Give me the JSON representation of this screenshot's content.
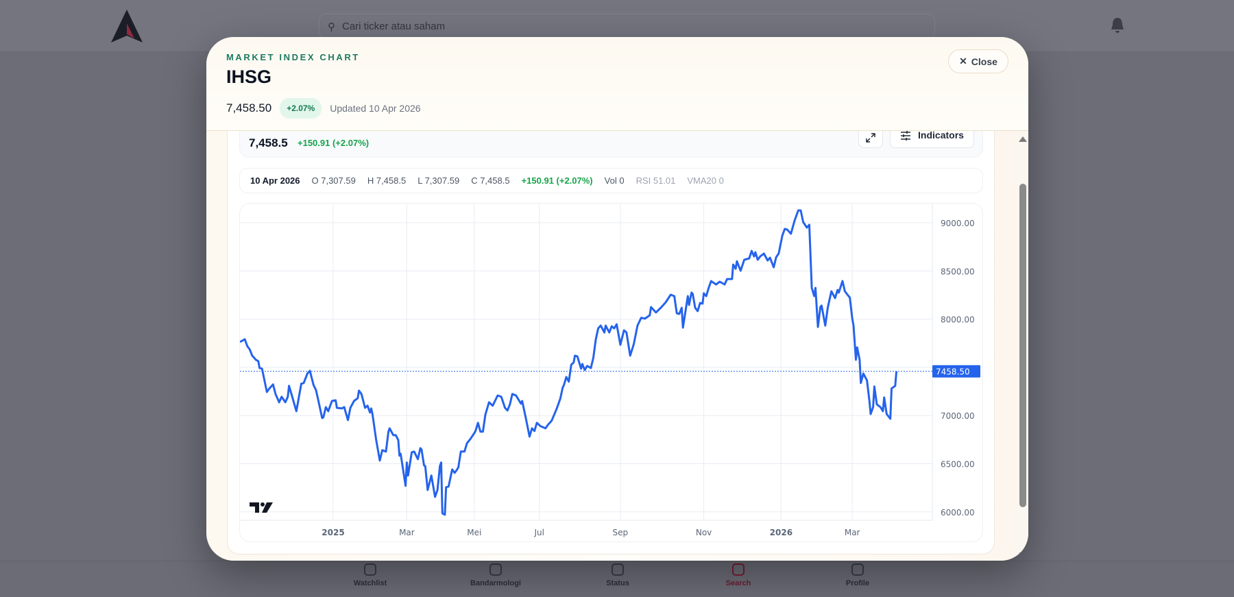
{
  "app": {
    "search_placeholder": "Cari ticker atau saham",
    "bottom_nav": [
      "Watchlist",
      "Bandarmologi",
      "Status",
      "Search",
      "Profile"
    ]
  },
  "modal": {
    "eyebrow": "MARKET INDEX CHART",
    "title": "IHSG",
    "price": "7,458.50",
    "change_pct": "+2.07%",
    "updated": "Updated 10 Apr 2026",
    "close_label": "Close"
  },
  "chart_header": {
    "last": "7,458.5",
    "change": "+150.91 (+2.07%)",
    "indicators_label": "Indicators"
  },
  "ohlc": {
    "date": "10 Apr 2026",
    "open": "O 7,307.59",
    "high": "H 7,458.5",
    "low": "L 7,307.59",
    "close": "C 7,458.5",
    "change": "+150.91 (+2.07%)",
    "vol": "Vol 0",
    "rsi": "RSI 51.01",
    "vma": "VMA20 0"
  },
  "colors": {
    "line": "#2563eb",
    "up": "#16a34a",
    "accent": "#1c7a62"
  },
  "chart_data": {
    "type": "line",
    "title": "IHSG",
    "x_unit": "days since 2025-01-01 (trading-bar axis)",
    "ylim": [
      5950,
      9250
    ],
    "yticks": [
      {
        "v": 9000,
        "label": "9000.00"
      },
      {
        "v": 8500,
        "label": "8500.00"
      },
      {
        "v": 8000,
        "label": "8000.00"
      },
      {
        "v": 7500,
        "label": ""
      },
      {
        "v": 7000,
        "label": "7000.00"
      },
      {
        "v": 6500,
        "label": "6500.00"
      },
      {
        "v": 6000,
        "label": "6000.00"
      }
    ],
    "xticks": [
      {
        "d": 0,
        "label": "2025",
        "bold": true
      },
      {
        "d": 60,
        "label": "Mar"
      },
      {
        "d": 115,
        "label": "Mei"
      },
      {
        "d": 168,
        "label": "Jul"
      },
      {
        "d": 234,
        "label": "Sep"
      },
      {
        "d": 302,
        "label": "Nov"
      },
      {
        "d": 365,
        "label": "2026",
        "bold": true
      },
      {
        "d": 423,
        "label": "Mar"
      }
    ],
    "last_value": 7458.5,
    "last_label": "7458.50",
    "grid": true,
    "points": [
      [
        -76,
        7763
      ],
      [
        -72,
        7791
      ],
      [
        -70,
        7720
      ],
      [
        -68,
        7685
      ],
      [
        -66,
        7621
      ],
      [
        -63,
        7578
      ],
      [
        -61,
        7564
      ],
      [
        -60,
        7493
      ],
      [
        -58,
        7486
      ],
      [
        -54,
        7244
      ],
      [
        -52,
        7280
      ],
      [
        -49,
        7322
      ],
      [
        -47,
        7223
      ],
      [
        -44,
        7137
      ],
      [
        -42,
        7194
      ],
      [
        -39,
        7137
      ],
      [
        -37,
        7194
      ],
      [
        -36,
        7308
      ],
      [
        -34,
        7223
      ],
      [
        -30,
        7045
      ],
      [
        -26,
        7330
      ],
      [
        -24,
        7337
      ],
      [
        -21,
        7436
      ],
      [
        -19,
        7464
      ],
      [
        -16,
        7315
      ],
      [
        -14,
        7265
      ],
      [
        -12,
        7151
      ],
      [
        -9,
        6974
      ],
      [
        -8,
        6981
      ],
      [
        -6,
        7087
      ],
      [
        -4,
        7045
      ],
      [
        -1,
        7151
      ],
      [
        2,
        7158
      ],
      [
        3,
        7080
      ],
      [
        7,
        7073
      ],
      [
        9,
        7087
      ],
      [
        12,
        6952
      ],
      [
        14,
        7080
      ],
      [
        17,
        7151
      ],
      [
        20,
        7180
      ],
      [
        21,
        7258
      ],
      [
        23,
        7223
      ],
      [
        26,
        7080
      ],
      [
        28,
        7102
      ],
      [
        30,
        7031
      ],
      [
        31,
        7073
      ],
      [
        32,
        7016
      ],
      [
        35,
        6746
      ],
      [
        38,
        6533
      ],
      [
        40,
        6640
      ],
      [
        43,
        6626
      ],
      [
        45,
        6832
      ],
      [
        46,
        6867
      ],
      [
        49,
        6796
      ],
      [
        51,
        6796
      ],
      [
        53,
        6746
      ],
      [
        54,
        6583
      ],
      [
        55,
        6604
      ],
      [
        59,
        6270
      ],
      [
        60,
        6512
      ],
      [
        61,
        6377
      ],
      [
        64,
        6618
      ],
      [
        66,
        6626
      ],
      [
        69,
        6547
      ],
      [
        71,
        6661
      ],
      [
        72,
        6647
      ],
      [
        74,
        6483
      ],
      [
        75,
        6476
      ],
      [
        77,
        6227
      ],
      [
        80,
        6377
      ],
      [
        83,
        6156
      ],
      [
        85,
        6227
      ],
      [
        87,
        6476
      ],
      [
        88,
        6512
      ],
      [
        89,
        5985
      ],
      [
        91,
        5971
      ],
      [
        92,
        6256
      ],
      [
        94,
        6263
      ],
      [
        97,
        6440
      ],
      [
        99,
        6405
      ],
      [
        101,
        6440
      ],
      [
        102,
        6462
      ],
      [
        104,
        6626
      ],
      [
        107,
        6626
      ],
      [
        109,
        6711
      ],
      [
        112,
        6760
      ],
      [
        115,
        6817
      ],
      [
        116,
        6839
      ],
      [
        118,
        6924
      ],
      [
        120,
        6832
      ],
      [
        122,
        6832
      ],
      [
        124,
        7009
      ],
      [
        127,
        7137
      ],
      [
        130,
        7102
      ],
      [
        134,
        7208
      ],
      [
        137,
        7194
      ],
      [
        140,
        7080
      ],
      [
        142,
        7052
      ],
      [
        144,
        7116
      ],
      [
        146,
        7223
      ],
      [
        149,
        7208
      ],
      [
        153,
        7123
      ],
      [
        154,
        7151
      ],
      [
        157,
        6974
      ],
      [
        160,
        6782
      ],
      [
        162,
        6867
      ],
      [
        164,
        6839
      ],
      [
        166,
        6924
      ],
      [
        169,
        6889
      ],
      [
        173,
        6867
      ],
      [
        175,
        6903
      ],
      [
        178,
        6945
      ],
      [
        182,
        7066
      ],
      [
        185,
        7173
      ],
      [
        187,
        7287
      ],
      [
        188,
        7315
      ],
      [
        190,
        7400
      ],
      [
        192,
        7351
      ],
      [
        194,
        7528
      ],
      [
        196,
        7550
      ],
      [
        197,
        7621
      ],
      [
        199,
        7614
      ],
      [
        202,
        7486
      ],
      [
        203,
        7535
      ],
      [
        205,
        7472
      ],
      [
        207,
        7514
      ],
      [
        210,
        7493
      ],
      [
        212,
        7600
      ],
      [
        214,
        7791
      ],
      [
        216,
        7905
      ],
      [
        218,
        7933
      ],
      [
        221,
        7862
      ],
      [
        222,
        7933
      ],
      [
        225,
        7862
      ],
      [
        227,
        7926
      ],
      [
        229,
        7905
      ],
      [
        231,
        7947
      ],
      [
        234,
        7734
      ],
      [
        237,
        7884
      ],
      [
        239,
        7862
      ],
      [
        242,
        7621
      ],
      [
        245,
        7741
      ],
      [
        248,
        7933
      ],
      [
        251,
        8014
      ],
      [
        254,
        8005
      ],
      [
        258,
        8040
      ],
      [
        259,
        8125
      ],
      [
        263,
        8069
      ],
      [
        267,
        8118
      ],
      [
        271,
        8175
      ],
      [
        275,
        8253
      ],
      [
        278,
        8239
      ],
      [
        280,
        8061
      ],
      [
        282,
        8054
      ],
      [
        284,
        8118
      ],
      [
        285,
        7912
      ],
      [
        289,
        8239
      ],
      [
        290,
        8147
      ],
      [
        292,
        8275
      ],
      [
        293,
        8261
      ],
      [
        295,
        8118
      ],
      [
        297,
        8083
      ],
      [
        299,
        8168
      ],
      [
        301,
        8161
      ],
      [
        302,
        8268
      ],
      [
        304,
        8239
      ],
      [
        306,
        8324
      ],
      [
        308,
        8395
      ],
      [
        312,
        8360
      ],
      [
        315,
        8388
      ],
      [
        319,
        8360
      ],
      [
        321,
        8416
      ],
      [
        325,
        8416
      ],
      [
        326,
        8566
      ],
      [
        328,
        8523
      ],
      [
        329,
        8601
      ],
      [
        332,
        8502
      ],
      [
        335,
        8616
      ],
      [
        339,
        8630
      ],
      [
        341,
        8708
      ],
      [
        343,
        8651
      ],
      [
        344,
        8694
      ],
      [
        346,
        8616
      ],
      [
        348,
        8651
      ],
      [
        351,
        8680
      ],
      [
        354,
        8609
      ],
      [
        356,
        8637
      ],
      [
        359,
        8538
      ],
      [
        361,
        8644
      ],
      [
        363,
        8680
      ],
      [
        366,
        8865
      ],
      [
        368,
        8936
      ],
      [
        370,
        8929
      ],
      [
        373,
        8886
      ],
      [
        376,
        9021
      ],
      [
        379,
        9128
      ],
      [
        381,
        9128
      ],
      [
        383,
        9007
      ],
      [
        386,
        8950
      ],
      [
        388,
        8979
      ],
      [
        390,
        8324
      ],
      [
        392,
        8239
      ],
      [
        393,
        8324
      ],
      [
        395,
        7919
      ],
      [
        397,
        8125
      ],
      [
        398,
        8140
      ],
      [
        401,
        7933
      ],
      [
        403,
        8118
      ],
      [
        406,
        8289
      ],
      [
        409,
        8218
      ],
      [
        411,
        8303
      ],
      [
        412,
        8275
      ],
      [
        415,
        8395
      ],
      [
        417,
        8289
      ],
      [
        420,
        8239
      ],
      [
        421,
        8225
      ],
      [
        423,
        8005
      ],
      [
        424,
        7933
      ],
      [
        426,
        7578
      ],
      [
        427,
        7706
      ],
      [
        429,
        7578
      ],
      [
        430,
        7337
      ],
      [
        432,
        7436
      ],
      [
        435,
        7365
      ],
      [
        437,
        7151
      ],
      [
        438,
        7016
      ],
      [
        440,
        7087
      ],
      [
        441,
        7301
      ],
      [
        443,
        7116
      ],
      [
        446,
        7087
      ],
      [
        448,
        7045
      ],
      [
        449,
        7187
      ],
      [
        451,
        7016
      ],
      [
        454,
        6966
      ],
      [
        455,
        7280
      ],
      [
        458,
        7308
      ],
      [
        459,
        7458.5
      ]
    ]
  }
}
